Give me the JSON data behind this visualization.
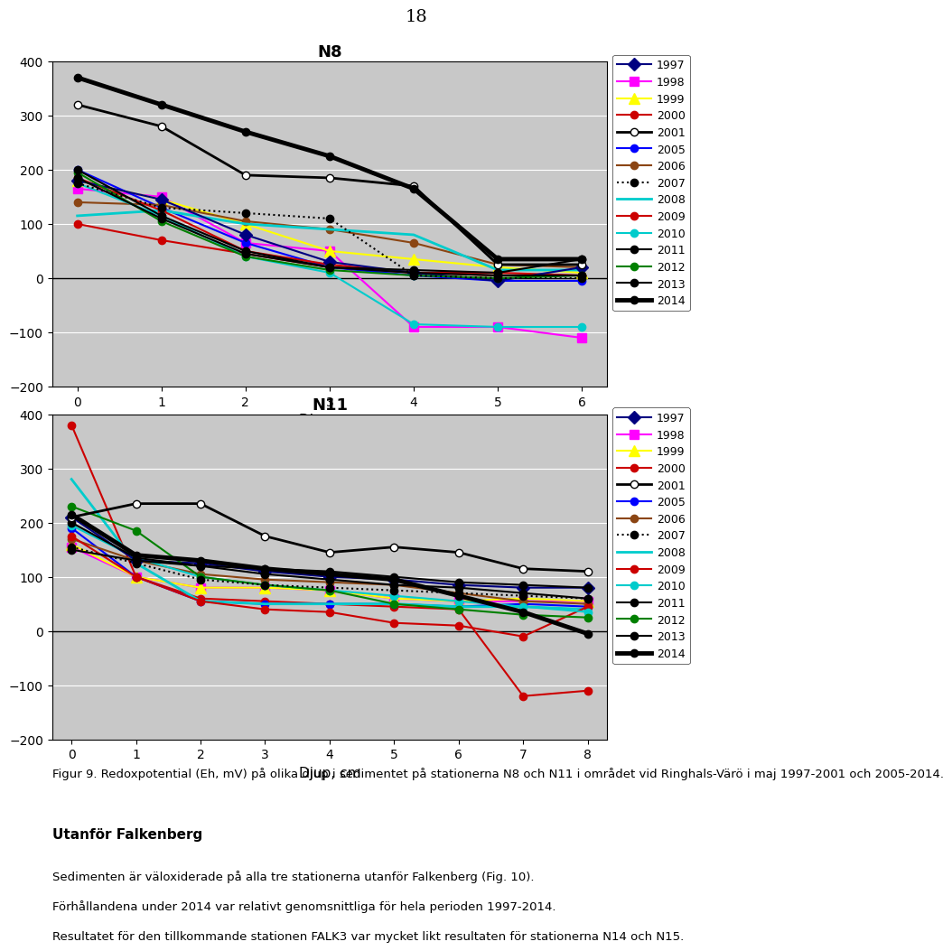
{
  "page_number": "18",
  "n8_title": "N8",
  "n11_title": "N11",
  "xlabel": "Djup, cm",
  "background_color": "#c8c8c8",
  "n8": {
    "xlim": [
      -0.3,
      6.3
    ],
    "ylim": [
      -200,
      400
    ],
    "yticks": [
      -200,
      -100,
      0,
      100,
      200,
      300,
      400
    ],
    "xticks": [
      0,
      1,
      2,
      3,
      4,
      5,
      6
    ],
    "series": {
      "1997": {
        "x": [
          0,
          1,
          2,
          3,
          4,
          5,
          6
        ],
        "y": [
          180,
          145,
          80,
          30,
          10,
          -5,
          20
        ],
        "color": "#000080",
        "marker": "D",
        "lw": 1.5,
        "ls": "-",
        "mfc": "#000080"
      },
      "1998": {
        "x": [
          0,
          1,
          2,
          3,
          4,
          5,
          6
        ],
        "y": [
          165,
          150,
          65,
          50,
          -90,
          -90,
          -110
        ],
        "color": "#ff00ff",
        "marker": "s",
        "lw": 1.5,
        "ls": "-",
        "mfc": "#ff00ff"
      },
      "1999": {
        "x": [
          0,
          1,
          2,
          3,
          4,
          5,
          6
        ],
        "y": [
          180,
          145,
          100,
          50,
          35,
          20,
          10
        ],
        "color": "#ffff00",
        "marker": "^",
        "lw": 1.5,
        "ls": "-",
        "mfc": "#ffff00"
      },
      "2000": {
        "x": [
          0,
          1,
          2,
          3,
          4,
          5,
          6
        ],
        "y": [
          100,
          70,
          45,
          20,
          10,
          5,
          5
        ],
        "color": "#cc0000",
        "marker": "o",
        "lw": 1.5,
        "ls": "-",
        "mfc": "#cc0000"
      },
      "2001": {
        "x": [
          0,
          1,
          2,
          3,
          4,
          5,
          6
        ],
        "y": [
          320,
          280,
          190,
          185,
          170,
          25,
          25
        ],
        "color": "#000000",
        "marker": "o",
        "lw": 2.0,
        "ls": "-",
        "mfc": "white"
      },
      "2005": {
        "x": [
          0,
          1,
          2,
          3,
          4,
          5,
          6
        ],
        "y": [
          200,
          130,
          65,
          20,
          5,
          -5,
          -5
        ],
        "color": "#0000ff",
        "marker": "o",
        "lw": 1.5,
        "ls": "-",
        "mfc": "#0000ff"
      },
      "2006": {
        "x": [
          0,
          1,
          2,
          3,
          4,
          5,
          6
        ],
        "y": [
          140,
          135,
          105,
          90,
          65,
          25,
          20
        ],
        "color": "#8B4513",
        "marker": "o",
        "lw": 1.5,
        "ls": "-",
        "mfc": "#8B4513"
      },
      "2007": {
        "x": [
          0,
          1,
          2,
          3,
          4,
          5,
          6
        ],
        "y": [
          175,
          130,
          120,
          110,
          5,
          0,
          0
        ],
        "color": "#000000",
        "marker": "o",
        "lw": 1.5,
        "ls": ":",
        "mfc": "#000000"
      },
      "2008": {
        "x": [
          0,
          1,
          2,
          3,
          4,
          5,
          6
        ],
        "y": [
          115,
          125,
          100,
          90,
          80,
          15,
          15
        ],
        "color": "#00cccc",
        "marker": "",
        "lw": 2.0,
        "ls": "-",
        "mfc": "#00cccc"
      },
      "2009": {
        "x": [
          0,
          1,
          2,
          3,
          4,
          5,
          6
        ],
        "y": [
          185,
          125,
          50,
          25,
          10,
          10,
          5
        ],
        "color": "#cc0000",
        "marker": "o",
        "lw": 1.5,
        "ls": "-",
        "mfc": "#cc0000"
      },
      "2010": {
        "x": [
          0,
          1,
          2,
          3,
          4,
          5,
          6
        ],
        "y": [
          175,
          115,
          40,
          10,
          -85,
          -90,
          -90
        ],
        "color": "#00cccc",
        "marker": "o",
        "lw": 1.5,
        "ls": "-",
        "mfc": "#00cccc"
      },
      "2011": {
        "x": [
          0,
          1,
          2,
          3,
          4,
          5,
          6
        ],
        "y": [
          200,
          115,
          50,
          20,
          10,
          5,
          5
        ],
        "color": "#000000",
        "marker": "o",
        "lw": 1.5,
        "ls": "-",
        "mfc": "#000000"
      },
      "2012": {
        "x": [
          0,
          1,
          2,
          3,
          4,
          5,
          6
        ],
        "y": [
          195,
          105,
          40,
          15,
          5,
          0,
          5
        ],
        "color": "#008000",
        "marker": "o",
        "lw": 1.5,
        "ls": "-",
        "mfc": "#008000"
      },
      "2013": {
        "x": [
          0,
          1,
          2,
          3,
          4,
          5,
          6
        ],
        "y": [
          185,
          110,
          45,
          20,
          15,
          10,
          35
        ],
        "color": "#000000",
        "marker": "o",
        "lw": 1.5,
        "ls": "-",
        "mfc": "#000000"
      },
      "2014": {
        "x": [
          0,
          1,
          2,
          3,
          4,
          5,
          6
        ],
        "y": [
          370,
          320,
          270,
          225,
          165,
          35,
          35
        ],
        "color": "#000000",
        "marker": "o",
        "lw": 3.5,
        "ls": "-",
        "mfc": "#000000"
      }
    }
  },
  "n11": {
    "xlim": [
      -0.3,
      8.3
    ],
    "ylim": [
      -200,
      400
    ],
    "yticks": [
      -200,
      -100,
      0,
      100,
      200,
      300,
      400
    ],
    "xticks": [
      0,
      1,
      2,
      3,
      4,
      5,
      6,
      7,
      8
    ],
    "series": {
      "1997": {
        "x": [
          0,
          1,
          2,
          3,
          4,
          5,
          6,
          7,
          8
        ],
        "y": [
          210,
          130,
          125,
          110,
          100,
          95,
          85,
          80,
          80
        ],
        "color": "#000080",
        "marker": "D",
        "lw": 1.5,
        "ls": "-",
        "mfc": "#000080"
      },
      "1998": {
        "x": [
          0,
          1,
          2,
          3,
          4,
          5,
          6,
          7,
          8
        ],
        "y": [
          155,
          100,
          80,
          80,
          75,
          60,
          55,
          55,
          55
        ],
        "color": "#ff00ff",
        "marker": "s",
        "lw": 1.5,
        "ls": "-",
        "mfc": "#ff00ff"
      },
      "1999": {
        "x": [
          0,
          1,
          2,
          3,
          4,
          5,
          6,
          7,
          8
        ],
        "y": [
          160,
          100,
          80,
          80,
          75,
          60,
          55,
          60,
          55
        ],
        "color": "#ffff00",
        "marker": "^",
        "lw": 1.5,
        "ls": "-",
        "mfc": "#ffff00"
      },
      "2000": {
        "x": [
          0,
          1,
          2,
          3,
          4,
          5,
          6,
          7,
          8
        ],
        "y": [
          380,
          100,
          60,
          55,
          50,
          45,
          40,
          -120,
          -110
        ],
        "color": "#cc0000",
        "marker": "o",
        "lw": 1.5,
        "ls": "-",
        "mfc": "#cc0000"
      },
      "2001": {
        "x": [
          0,
          1,
          2,
          3,
          4,
          5,
          6,
          7,
          8
        ],
        "y": [
          210,
          235,
          235,
          175,
          145,
          155,
          145,
          115,
          110
        ],
        "color": "#000000",
        "marker": "o",
        "lw": 2.0,
        "ls": "-",
        "mfc": "white"
      },
      "2005": {
        "x": [
          0,
          1,
          2,
          3,
          4,
          5,
          6,
          7,
          8
        ],
        "y": [
          190,
          100,
          55,
          50,
          50,
          50,
          45,
          50,
          45
        ],
        "color": "#0000ff",
        "marker": "o",
        "lw": 1.5,
        "ls": "-",
        "mfc": "#0000ff"
      },
      "2006": {
        "x": [
          0,
          1,
          2,
          3,
          4,
          5,
          6,
          7,
          8
        ],
        "y": [
          170,
          130,
          105,
          95,
          90,
          85,
          70,
          55,
          50
        ],
        "color": "#8B4513",
        "marker": "o",
        "lw": 1.5,
        "ls": "-",
        "mfc": "#8B4513"
      },
      "2007": {
        "x": [
          0,
          1,
          2,
          3,
          4,
          5,
          6,
          7,
          8
        ],
        "y": [
          155,
          125,
          95,
          85,
          80,
          75,
          70,
          65,
          60
        ],
        "color": "#000000",
        "marker": "o",
        "lw": 1.5,
        "ls": ":",
        "mfc": "#000000"
      },
      "2008": {
        "x": [
          0,
          1,
          2,
          3,
          4,
          5,
          6,
          7,
          8
        ],
        "y": [
          280,
          125,
          55,
          50,
          50,
          50,
          45,
          45,
          40
        ],
        "color": "#00cccc",
        "marker": "",
        "lw": 2.0,
        "ls": "-",
        "mfc": "#00cccc"
      },
      "2009": {
        "x": [
          0,
          1,
          2,
          3,
          4,
          5,
          6,
          7,
          8
        ],
        "y": [
          175,
          100,
          55,
          40,
          35,
          15,
          10,
          -10,
          45
        ],
        "color": "#cc0000",
        "marker": "o",
        "lw": 1.5,
        "ls": "-",
        "mfc": "#cc0000"
      },
      "2010": {
        "x": [
          0,
          1,
          2,
          3,
          4,
          5,
          6,
          7,
          8
        ],
        "y": [
          195,
          135,
          100,
          85,
          75,
          65,
          55,
          45,
          35
        ],
        "color": "#00cccc",
        "marker": "o",
        "lw": 1.5,
        "ls": "-",
        "mfc": "#00cccc"
      },
      "2011": {
        "x": [
          0,
          1,
          2,
          3,
          4,
          5,
          6,
          7,
          8
        ],
        "y": [
          200,
          135,
          120,
          105,
          95,
          85,
          80,
          70,
          60
        ],
        "color": "#000000",
        "marker": "o",
        "lw": 1.5,
        "ls": "-",
        "mfc": "#000000"
      },
      "2012": {
        "x": [
          0,
          1,
          2,
          3,
          4,
          5,
          6,
          7,
          8
        ],
        "y": [
          230,
          185,
          100,
          85,
          75,
          50,
          40,
          30,
          25
        ],
        "color": "#008000",
        "marker": "o",
        "lw": 1.5,
        "ls": "-",
        "mfc": "#008000"
      },
      "2013": {
        "x": [
          0,
          1,
          2,
          3,
          4,
          5,
          6,
          7,
          8
        ],
        "y": [
          150,
          130,
          120,
          115,
          110,
          100,
          90,
          85,
          80
        ],
        "color": "#000000",
        "marker": "o",
        "lw": 1.5,
        "ls": "-",
        "mfc": "#000000"
      },
      "2014": {
        "x": [
          0,
          1,
          2,
          3,
          4,
          5,
          6,
          7,
          8
        ],
        "y": [
          215,
          140,
          130,
          115,
          105,
          95,
          65,
          35,
          -5
        ],
        "color": "#000000",
        "marker": "o",
        "lw": 3.5,
        "ls": "-",
        "mfc": "#000000"
      }
    }
  },
  "legend_years": [
    "1997",
    "1998",
    "1999",
    "2000",
    "2001",
    "2005",
    "2006",
    "2007",
    "2008",
    "2009",
    "2010",
    "2011",
    "2012",
    "2013",
    "2014"
  ],
  "legend_colors": [
    "#000080",
    "#ff00ff",
    "#ffff00",
    "#cc0000",
    "#000000",
    "#0000ff",
    "#8B4513",
    "#000000",
    "#00cccc",
    "#cc0000",
    "#00cccc",
    "#000000",
    "#008000",
    "#000000",
    "#000000"
  ],
  "legend_markers": [
    "D",
    "s",
    "^",
    "o",
    "o",
    "o",
    "o",
    "o",
    "",
    "o",
    "o",
    "o",
    "o",
    "o",
    "o"
  ],
  "legend_ls": [
    "-",
    "-",
    "-",
    "-",
    "-",
    "-",
    "-",
    ":",
    "-",
    "-",
    "-",
    "-",
    "-",
    "-",
    "-"
  ],
  "legend_lw": [
    1.5,
    1.5,
    1.5,
    1.5,
    2.0,
    1.5,
    1.5,
    1.5,
    2.0,
    1.5,
    1.5,
    1.5,
    1.5,
    1.5,
    3.5
  ],
  "legend_mfc": [
    "#000080",
    "#ff00ff",
    "#ffff00",
    "#cc0000",
    "white",
    "#0000ff",
    "#8B4513",
    "#000000",
    "#00cccc",
    "#cc0000",
    "#00cccc",
    "#000000",
    "#008000",
    "#000000",
    "#000000"
  ],
  "caption": "Figur 9. Redoxpotential (Eh, mV) på olika djup i sedimentet på stationerna N8 och N11 i området vid Ringhals-Värö i maj 1997-2001 och 2005-2014.",
  "text1": "Utanför Falkenberg",
  "text2": "Sedimenten är väloxiderade på alla tre stationerna utanför Falkenberg (Fig. 10).",
  "text3": "Förhållandena under 2014 var relativt genomsnittliga för hela perioden 1997-2014.",
  "text4": "Resultatet för den tillkommande stationen FALK3 var mycket likt resultaten för stationerna N14 och N15."
}
